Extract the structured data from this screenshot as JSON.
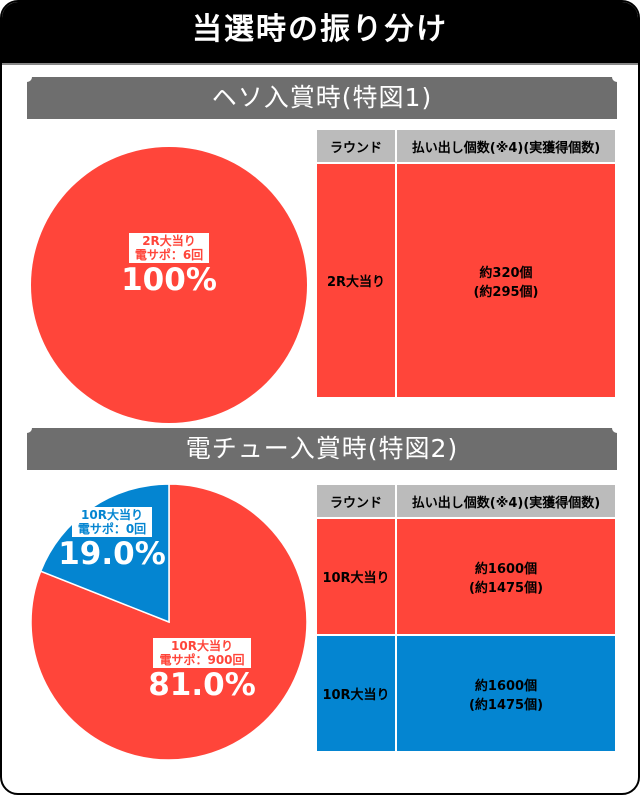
{
  "title": "当選時の振り分け",
  "sections": [
    {
      "heading": "ヘソ入賞時(特図1)",
      "table": {
        "headers": [
          "ラウンド",
          "払い出し個数(※4)(実獲得個数)"
        ],
        "rows": [
          {
            "round": "2R大当り",
            "payout": "約320個",
            "actual": "(約295個)",
            "color": "#ff453a"
          }
        ]
      }
    },
    {
      "heading": "電チュー入賞時(特図2)",
      "table": {
        "headers": [
          "ラウンド",
          "払い出し個数(※4)(実獲得個数)"
        ],
        "rows": [
          {
            "round": "10R大当り",
            "payout": "約1600個",
            "actual": "(約1475個)",
            "color": "#ff453a"
          },
          {
            "round": "10R大当り",
            "payout": "約1600個",
            "actual": "(約1475個)",
            "color": "#0485d1"
          }
        ]
      }
    }
  ],
  "chart_data": [
    {
      "type": "pie",
      "slices": [
        {
          "label": "2R大当り",
          "sublabel": "電サポ：6回",
          "value": 100,
          "display": "100%",
          "color": "#ff453a"
        }
      ]
    },
    {
      "type": "pie",
      "slices": [
        {
          "label": "10R大当り",
          "sublabel": "電サポ：900回",
          "value": 81.0,
          "display": "81.0%",
          "color": "#ff453a"
        },
        {
          "label": "10R大当り",
          "sublabel": "電サポ：0回",
          "value": 19.0,
          "display": "19.0%",
          "color": "#0485d1"
        }
      ]
    }
  ]
}
